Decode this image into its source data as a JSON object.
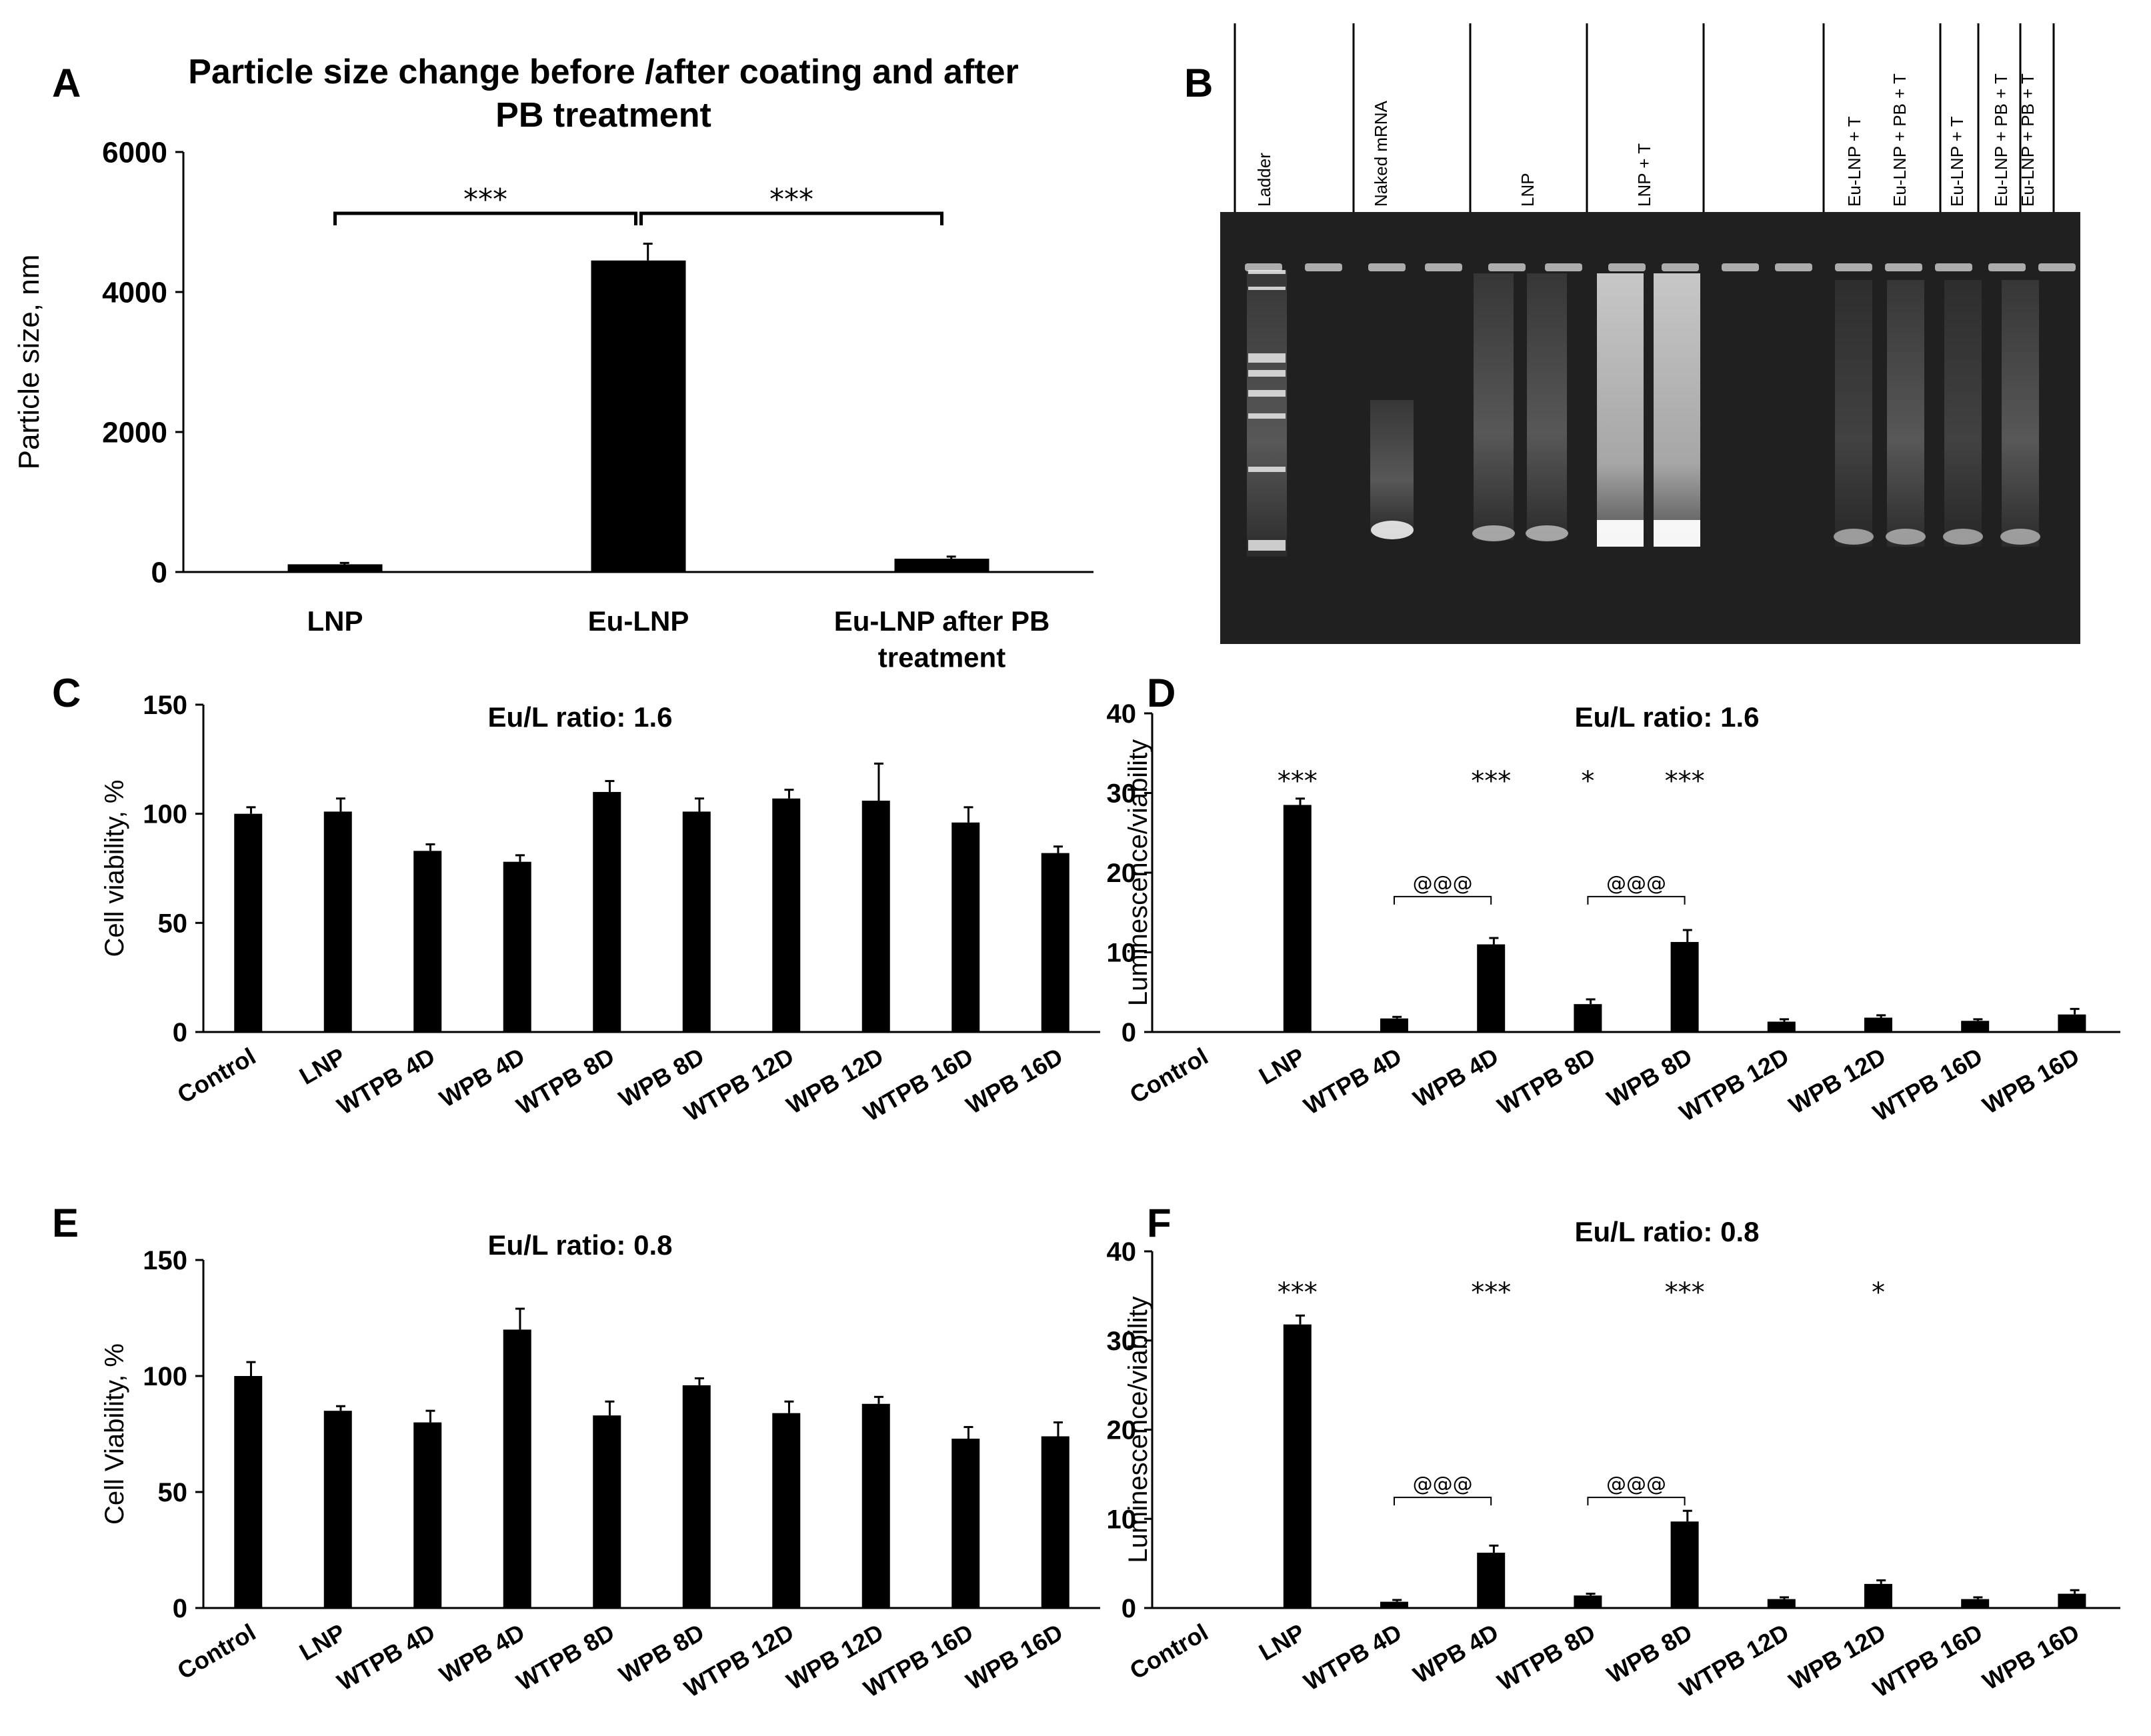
{
  "panels": {
    "A": "A",
    "B": "B",
    "C": "C",
    "D": "D",
    "E": "E",
    "F": "F"
  },
  "chart_data": [
    {
      "id": "A",
      "type": "bar",
      "title": "Particle size change before /after coating and after PB treatment",
      "title_lines": [
        "Particle size change before /after coating and after",
        "PB treatment"
      ],
      "ylabel": "Particle size, nm",
      "xlabel": "",
      "ylim": [
        0,
        6000
      ],
      "yticks": [
        0,
        2000,
        4000,
        6000
      ],
      "categories": [
        "LNP",
        "Eu-LNP",
        "Eu-LNP after PB treatment"
      ],
      "category_lines": [
        [
          "LNP"
        ],
        [
          "Eu-LNP"
        ],
        [
          "Eu-LNP after PB",
          "treatment"
        ]
      ],
      "values": [
        110,
        4450,
        190
      ],
      "errors": [
        20,
        240,
        30
      ],
      "significance": [
        {
          "from": 0,
          "to": 1,
          "label": "***"
        },
        {
          "from": 1,
          "to": 2,
          "label": "***"
        }
      ]
    },
    {
      "id": "C",
      "type": "bar",
      "title": "Eu/L ratio: 1.6",
      "ylabel": "Cell viability, %",
      "xlabel": "",
      "ylim": [
        0,
        150
      ],
      "yticks": [
        0,
        50,
        100,
        150
      ],
      "categories": [
        "Control",
        "LNP",
        "WTPB 4D",
        "WPB 4D",
        "WTPB 8D",
        "WPB 8D",
        "WTPB 12D",
        "WPB 12D",
        "WTPB 16D",
        "WPB 16D"
      ],
      "values": [
        100,
        101,
        83,
        78,
        110,
        101,
        107,
        106,
        96,
        82
      ],
      "errors": [
        3,
        6,
        3,
        3,
        5,
        6,
        4,
        17,
        7,
        3
      ],
      "stars": [],
      "brackets": []
    },
    {
      "id": "D",
      "type": "bar",
      "title": "Eu/L ratio: 1.6",
      "ylabel": "Luminescence/viability",
      "xlabel": "",
      "ylim": [
        0,
        40
      ],
      "yticks": [
        0,
        10,
        20,
        30,
        40
      ],
      "categories": [
        "Control",
        "LNP",
        "WTPB 4D",
        "WPB 4D",
        "WTPB 8D",
        "WPB 8D",
        "WTPB 12D",
        "WPB 12D",
        "WTPB 16D",
        "WPB 16D"
      ],
      "values": [
        0,
        28.5,
        1.7,
        11.0,
        3.5,
        11.3,
        1.3,
        1.8,
        1.4,
        2.2
      ],
      "errors": [
        0,
        0.8,
        0.2,
        0.8,
        0.6,
        1.5,
        0.3,
        0.3,
        0.2,
        0.7
      ],
      "stars": [
        {
          "index": 1,
          "label": "***"
        },
        {
          "index": 3,
          "label": "***"
        },
        {
          "index": 4,
          "label": "*"
        },
        {
          "index": 5,
          "label": "***"
        }
      ],
      "brackets": [
        {
          "from": 2,
          "to": 3,
          "label": "@@@",
          "level": 17
        },
        {
          "from": 4,
          "to": 5,
          "label": "@@@",
          "level": 17
        }
      ]
    },
    {
      "id": "E",
      "type": "bar",
      "title": "Eu/L ratio: 0.8",
      "ylabel": "Cell Viability, %",
      "xlabel": "",
      "ylim": [
        0,
        150
      ],
      "yticks": [
        0,
        50,
        100,
        150
      ],
      "categories": [
        "Control",
        "LNP",
        "WTPB 4D",
        "WPB 4D",
        "WTPB 8D",
        "WPB 8D",
        "WTPB 12D",
        "WPB 12D",
        "WTPB 16D",
        "WPB 16D"
      ],
      "values": [
        100,
        85,
        80,
        120,
        83,
        96,
        84,
        88,
        73,
        74
      ],
      "errors": [
        6,
        2,
        5,
        9,
        6,
        3,
        5,
        3,
        5,
        6
      ],
      "stars": [],
      "brackets": []
    },
    {
      "id": "F",
      "type": "bar",
      "title": "Eu/L ratio: 0.8",
      "ylabel": "Luminescence/viability",
      "xlabel": "",
      "ylim": [
        0,
        40
      ],
      "yticks": [
        0,
        10,
        20,
        30,
        40
      ],
      "categories": [
        "Control",
        "LNP",
        "WTPB 4D",
        "WPB 4D",
        "WTPB 8D",
        "WPB 8D",
        "WTPB 12D",
        "WPB 12D",
        "WTPB 16D",
        "WPB 16D"
      ],
      "values": [
        0,
        31.8,
        0.7,
        6.2,
        1.4,
        9.7,
        1.0,
        2.7,
        1.0,
        1.6
      ],
      "errors": [
        0,
        1.0,
        0.2,
        0.8,
        0.2,
        1.2,
        0.2,
        0.4,
        0.2,
        0.4
      ],
      "stars": [
        {
          "index": 1,
          "label": "***"
        },
        {
          "index": 3,
          "label": "***"
        },
        {
          "index": 5,
          "label": "***"
        },
        {
          "index": 7,
          "label": "*"
        }
      ],
      "brackets": [
        {
          "from": 2,
          "to": 3,
          "label": "@@@",
          "level": 12.4
        },
        {
          "from": 4,
          "to": 5,
          "label": "@@@",
          "level": 12.4
        }
      ]
    }
  ],
  "gel": {
    "lanes": [
      "Ladder",
      "Naked  mRNA",
      "",
      "LNP",
      "LNP + T",
      "",
      "Eu-LNP + T",
      "Eu-LNP + PB + T",
      "Eu-LNP + T",
      "Eu-LNP + PB + T"
    ],
    "background": "#202020",
    "band_color": "#e8e8e8"
  },
  "colors": {
    "bar": "#000000",
    "axis": "#000000"
  }
}
